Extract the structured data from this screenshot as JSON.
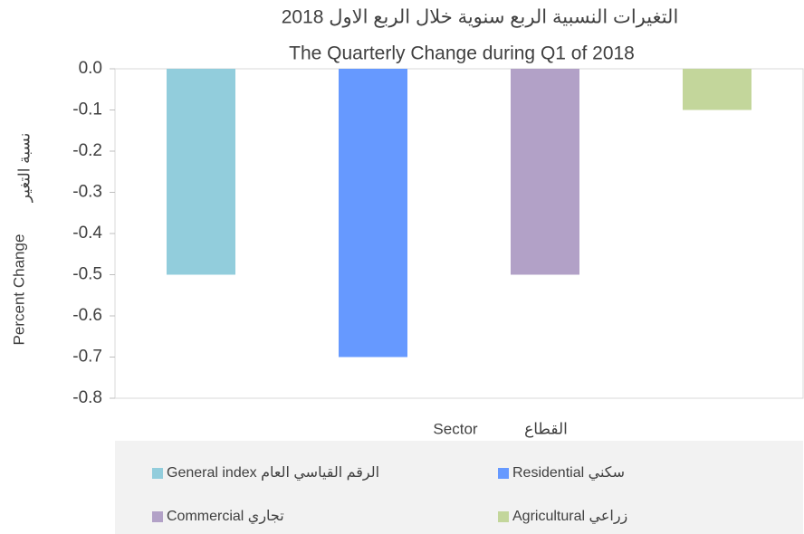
{
  "chart_data": {
    "type": "bar",
    "title_ar": "التغيرات النسبية الربع سنوية  خلال الربع الاول 2018",
    "title": "The Quarterly Change during Q1 of 2018",
    "y_label": "Percent Change",
    "y_label_ar": "نسبة التغير",
    "x_label": "Sector",
    "x_label_ar": "القطاع",
    "series": [
      {
        "name": "General index الرقم القياسي العام",
        "color": "#92cddc",
        "values": [
          -0.5
        ]
      },
      {
        "name": "Residential سكني",
        "color": "#6699ff",
        "values": [
          -0.7
        ]
      },
      {
        "name": "Commercial تجاري",
        "color": "#b2a1c7",
        "values": [
          -0.5
        ]
      },
      {
        "name": "Agricultural زراعي",
        "color": "#c3d69b",
        "values": [
          -0.1
        ]
      }
    ],
    "ylim": [
      -0.8,
      0
    ],
    "yticks": [
      {
        "value": 0,
        "label": "0.0"
      },
      -0.1,
      -0.2,
      -0.3,
      -0.4,
      -0.5,
      -0.6,
      -0.7,
      -0.8
    ],
    "grid": false,
    "legend": "bottom"
  }
}
